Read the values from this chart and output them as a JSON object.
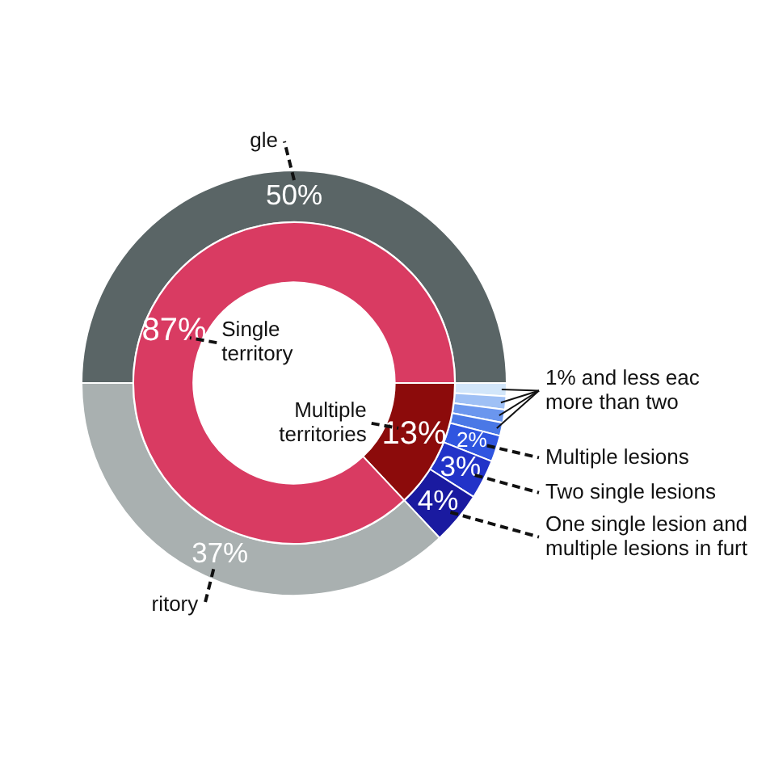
{
  "chart_data": [
    {
      "type": "donut",
      "annotations": [
        "1% and less eac",
        "more than two"
      ],
      "categories": [
        null,
        null,
        null,
        null,
        "Multiple lesions",
        "Two single lesions",
        "One single lesion and multiple lesions in furt",
        "ritory",
        "gle"
      ],
      "values": [
        1,
        1,
        1,
        1,
        2,
        3,
        4,
        37,
        50
      ],
      "colors": [
        "#d2e6fa",
        "#9fc0f5",
        "#6b96ee",
        "#4a78e6",
        "#2f55e0",
        "#2233c8",
        "#1a1aa0",
        "#a9b0b0",
        "#5a6566"
      ],
      "value_labels": [
        null,
        null,
        null,
        null,
        "2%",
        "3%",
        "4%",
        "37%",
        "50%"
      ]
    },
    {
      "type": "donut",
      "categories": [
        "Multiple territories",
        "Single territory"
      ],
      "values": [
        13,
        87
      ],
      "colors": [
        "#8c0b0b",
        "#d93b62"
      ],
      "value_labels": [
        "13%",
        "87%"
      ]
    }
  ]
}
